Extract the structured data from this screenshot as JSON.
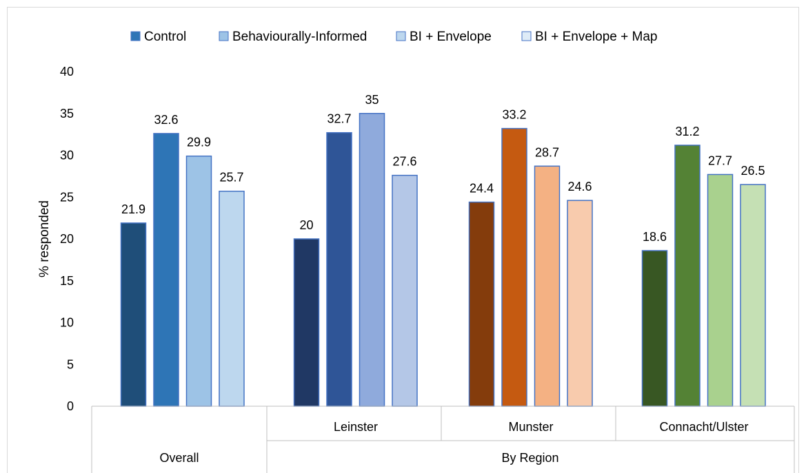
{
  "chart_data": {
    "type": "bar",
    "ylabel": "% responded",
    "ylim": [
      0,
      40
    ],
    "yticks": [
      0,
      5,
      10,
      15,
      20,
      25,
      30,
      35,
      40
    ],
    "grid": false,
    "legend_position": "top",
    "legend": [
      "Control",
      "Behaviourally-Informed",
      "BI + Envelope",
      "BI + Envelope + Map"
    ],
    "legend_colors": [
      "#2e75b6",
      "#9dc3e6",
      "#bdd7ee",
      "#deebf7"
    ],
    "groups": [
      {
        "name": "Overall",
        "subgroup": "",
        "values": [
          21.9,
          32.6,
          29.9,
          25.7
        ],
        "colors": [
          "#1f4e79",
          "#2e75b6",
          "#9dc3e6",
          "#bdd7ee"
        ]
      },
      {
        "name": "By Region",
        "subgroup": "Leinster",
        "values": [
          20,
          32.7,
          35,
          27.6
        ],
        "colors": [
          "#203864",
          "#2f5597",
          "#8faadc",
          "#b4c7e7"
        ]
      },
      {
        "name": "By Region",
        "subgroup": "Munster",
        "values": [
          24.4,
          33.2,
          28.7,
          24.6
        ],
        "colors": [
          "#843c0c",
          "#c55a11",
          "#f4b183",
          "#f8cbad"
        ]
      },
      {
        "name": "By Region",
        "subgroup": "Connacht/Ulster",
        "values": [
          18.6,
          31.2,
          27.7,
          26.5
        ],
        "colors": [
          "#385723",
          "#548235",
          "#a9d18e",
          "#c5e0b4"
        ]
      }
    ],
    "top_categories": [
      "Overall",
      "By Region"
    ]
  }
}
